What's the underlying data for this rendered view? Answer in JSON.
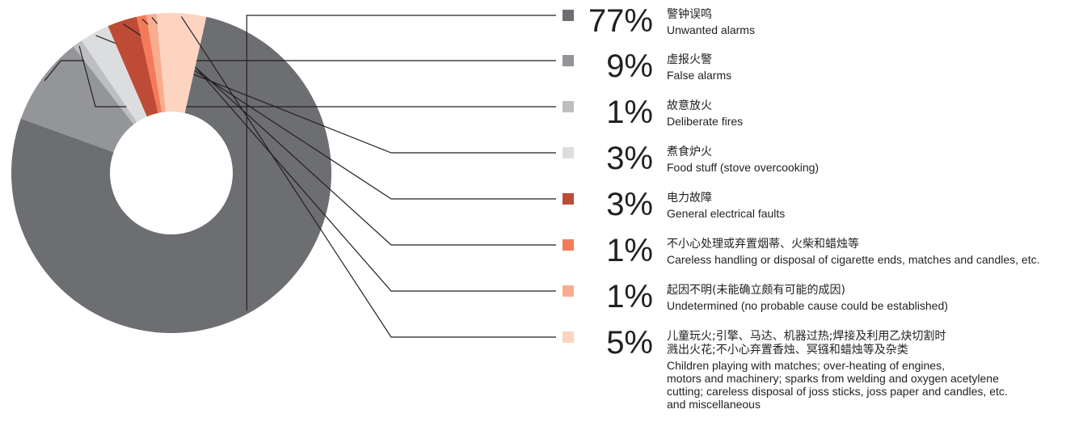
{
  "chart_data": {
    "type": "pie",
    "donut": true,
    "slices": [
      {
        "value": 77,
        "label": "77%",
        "zh": "警钟误鸣",
        "en": "Unwanted alarms",
        "color": "#6d6e71"
      },
      {
        "value": 9,
        "label": "9%",
        "zh": "虚报火警",
        "en": "False alarms",
        "color": "#939598"
      },
      {
        "value": 1,
        "label": "1%",
        "zh": "故意放火",
        "en": "Deliberate fires",
        "color": "#bcbec0"
      },
      {
        "value": 3,
        "label": "3%",
        "zh": "煮食炉火",
        "en": "Food stuff (stove overcooking)",
        "color": "#dcddde"
      },
      {
        "value": 3,
        "label": "3%",
        "zh": "电力故障",
        "en": "General electrical faults",
        "color": "#be4b35"
      },
      {
        "value": 1,
        "label": "1%",
        "zh": "不小心处理或弃置烟蒂、火柴和蜡烛等",
        "en": "Careless handling or disposal of cigarette ends, matches and candles, etc.",
        "color": "#f47b5a"
      },
      {
        "value": 1,
        "label": "1%",
        "zh": "起因不明(未能确立颇有可能的成因)",
        "en": "Undetermined (no probable cause could be established)",
        "color": "#f7ad8e"
      },
      {
        "value": 5,
        "label": "5%",
        "zh": "儿童玩火;引擎、马达、机器过热;焊接及利用乙炔切割时\n溅出火花;不小心弃置香烛、冥镪和蜡烛等及杂类",
        "en": "Children playing with matches; over-heating of engines,\nmotors and machinery; sparks from welding and oxygen acetylene\ncutting; careless disposal of joss sticks, joss paper and candles, etc.\nand miscellaneous",
        "color": "#fdd4c0"
      }
    ]
  }
}
